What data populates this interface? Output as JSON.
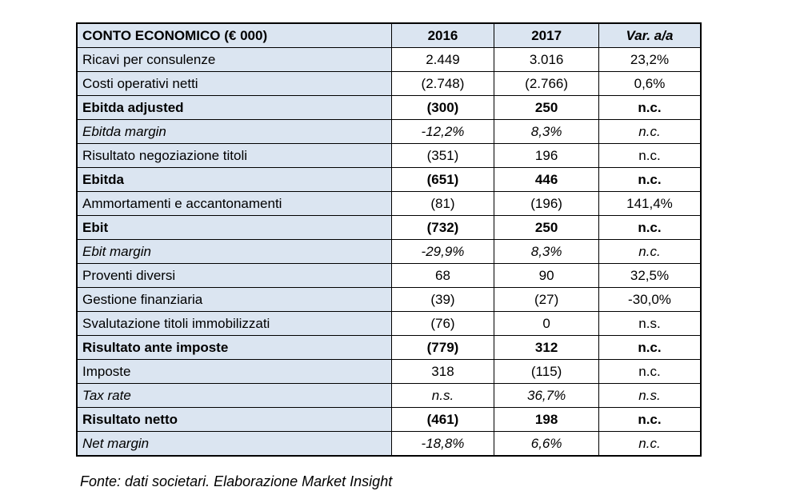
{
  "table": {
    "header": {
      "label": "CONTO ECONOMICO (€ 000)",
      "col_2016": "2016",
      "col_2017": "2017",
      "col_var": "Var. a/a"
    },
    "rows": [
      {
        "label": "Ricavi per consulenze",
        "v2016": "2.449",
        "v2017": "3.016",
        "var": "23,2%",
        "style": "normal"
      },
      {
        "label": "Costi operativi netti",
        "v2016": "(2.748)",
        "v2017": "(2.766)",
        "var": "0,6%",
        "style": "normal"
      },
      {
        "label": "Ebitda adjusted",
        "v2016": "(300)",
        "v2017": "250",
        "var": "n.c.",
        "style": "bold"
      },
      {
        "label": "Ebitda margin",
        "v2016": "-12,2%",
        "v2017": "8,3%",
        "var": "n.c.",
        "style": "italic"
      },
      {
        "label": "Risultato negoziazione titoli",
        "v2016": "(351)",
        "v2017": "196",
        "var": "n.c.",
        "style": "normal"
      },
      {
        "label": "Ebitda",
        "v2016": "(651)",
        "v2017": "446",
        "var": "n.c.",
        "style": "bold"
      },
      {
        "label": "Ammortamenti e accantonamenti",
        "v2016": "(81)",
        "v2017": "(196)",
        "var": "141,4%",
        "style": "normal"
      },
      {
        "label": "Ebit",
        "v2016": "(732)",
        "v2017": "250",
        "var": "n.c.",
        "style": "bold"
      },
      {
        "label": "Ebit margin",
        "v2016": "-29,9%",
        "v2017": "8,3%",
        "var": "n.c.",
        "style": "italic"
      },
      {
        "label": "Proventi diversi",
        "v2016": "68",
        "v2017": "90",
        "var": "32,5%",
        "style": "normal"
      },
      {
        "label": "Gestione finanziaria",
        "v2016": "(39)",
        "v2017": "(27)",
        "var": "-30,0%",
        "style": "normal"
      },
      {
        "label": "Svalutazione titoli immobilizzati",
        "v2016": "(76)",
        "v2017": "0",
        "var": "n.s.",
        "style": "normal"
      },
      {
        "label": "Risultato ante imposte",
        "v2016": "(779)",
        "v2017": "312",
        "var": "n.c.",
        "style": "bold"
      },
      {
        "label": "Imposte",
        "v2016": "318",
        "v2017": "(115)",
        "var": "n.c.",
        "style": "normal"
      },
      {
        "label": "Tax rate",
        "v2016": "n.s.",
        "v2017": "36,7%",
        "var": "n.s.",
        "style": "italic"
      },
      {
        "label": "Risultato netto",
        "v2016": "(461)",
        "v2017": "198",
        "var": "n.c.",
        "style": "bold"
      },
      {
        "label": "Net margin",
        "v2016": "-18,8%",
        "v2017": "6,6%",
        "var": "n.c.",
        "style": "italic"
      }
    ]
  },
  "footer": {
    "source_note": "Fonte: dati societari. Elaborazione Market Insight"
  },
  "colors": {
    "header_bg": "#DBE5F1",
    "label_col_bg": "#DBE5F1",
    "border": "#000000",
    "text": "#000000",
    "page_bg": "#FFFFFF"
  }
}
